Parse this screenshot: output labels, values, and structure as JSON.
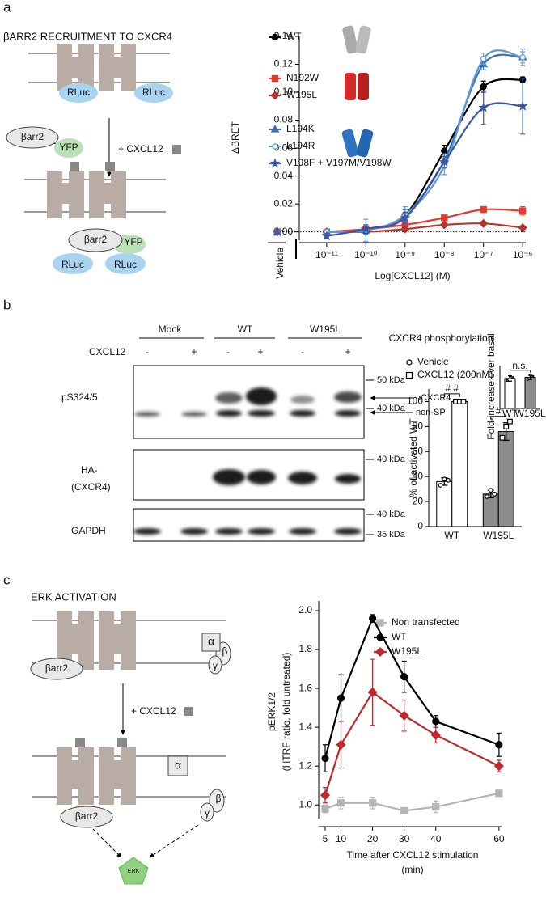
{
  "panels": [
    "a",
    "b",
    "c"
  ],
  "diagram_a": {
    "title": "βARR2 RECRUITMENT TO CXCR4",
    "labels": [
      "RLuc",
      "RLuc",
      "βarr2",
      "YFP",
      "+ CXCL12",
      "βarr2",
      "YFP",
      "RLuc",
      "RLuc"
    ]
  },
  "blot": {
    "groups": [
      "Mock",
      "WT",
      "W195L"
    ],
    "treatment": "CXCL12",
    "lane_signs": [
      "-",
      "+",
      "-",
      "+",
      "-",
      "+"
    ],
    "rows": [
      "pS324/5",
      "HA-",
      "(CXCR4)",
      "GAPDH"
    ],
    "markers": [
      "50 kDa",
      "40 kDa",
      "40 kDa",
      "40 kDa",
      "35 kDa"
    ],
    "bands": [
      "pCXCR4",
      "non-SP"
    ]
  },
  "diagram_c": {
    "title": "ERK ACTIVATION",
    "labels": [
      "α",
      "β",
      "γ",
      "βarr2",
      "+ CXCL12",
      "α",
      "β",
      "γ",
      "βarr2",
      "ERK"
    ]
  },
  "chart_data": [
    {
      "type": "line",
      "xscale": "log",
      "smooth": true,
      "zero_line": true,
      "ylabel": "ΔBRET",
      "xlabel": "Log[CXCL12] (M)",
      "vehicle_label": "Vehicle",
      "x": [
        1e-11,
        1e-10,
        1e-09,
        1e-08,
        1e-07,
        1e-06
      ],
      "xlim": [
        2e-12,
        1.2e-06
      ],
      "xticks": [
        {
          "value": 1e-11,
          "label": "10⁻¹¹"
        },
        {
          "value": 1e-10,
          "label": "10⁻¹⁰"
        },
        {
          "value": 1e-09,
          "label": "10⁻⁹"
        },
        {
          "value": 1e-08,
          "label": "10⁻⁸"
        },
        {
          "value": 1e-07,
          "label": "10⁻⁷"
        },
        {
          "value": 1e-06,
          "label": "10⁻⁶"
        }
      ],
      "ylim": [
        -0.006,
        0.14
      ],
      "yticks": [
        {
          "value": 0,
          "label": "0.00"
        },
        {
          "value": 0.02,
          "label": "0.02"
        },
        {
          "value": 0.04,
          "label": "0.04"
        },
        {
          "value": 0.06,
          "label": "0.06"
        },
        {
          "value": 0.08,
          "label": "0.08"
        },
        {
          "value": 0.1,
          "label": "0.10"
        },
        {
          "value": 0.12,
          "label": "0.12"
        },
        {
          "value": 0.14,
          "label": "0.14"
        }
      ],
      "series": [
        {
          "name": "WT",
          "color": "#000000",
          "marker": "circle",
          "vehicle": 0,
          "values": [
            0.0,
            0.002,
            0.012,
            0.058,
            0.104,
            0.109
          ],
          "errors": [
            0.002,
            0.003,
            0.004,
            0.004,
            0.004,
            0.002
          ]
        },
        {
          "name": "N192W",
          "color": "#e53a2f",
          "marker": "square",
          "vehicle": 0,
          "values": [
            0.0,
            0.002,
            0.005,
            0.01,
            0.016,
            0.015
          ],
          "errors": [
            0.001,
            0.002,
            0.002,
            0.002,
            0.002,
            0.003
          ]
        },
        {
          "name": "W195L",
          "color": "#b5352f",
          "marker": "diamond",
          "vehicle": 0,
          "values": [
            0.0,
            0.0,
            0.002,
            0.005,
            0.006,
            0.003
          ],
          "errors": [
            0.001,
            0.001,
            0.001,
            0.001,
            0.001,
            0.001
          ]
        },
        {
          "name": "L194K",
          "color": "#3c6fb6",
          "marker": "triangle",
          "vehicle": 0,
          "values": [
            0.0,
            0.001,
            0.012,
            0.051,
            0.12,
            0.125
          ],
          "errors": [
            0.002,
            0.003,
            0.004,
            0.005,
            0.004,
            0.006
          ]
        },
        {
          "name": "L194R",
          "color": "#5b9bd5",
          "marker": "circle-open",
          "vehicle": 0,
          "values": [
            0.0,
            0.001,
            0.012,
            0.047,
            0.124,
            0.125
          ],
          "errors": [
            0.002,
            0.008,
            0.006,
            0.006,
            0.004,
            0.004
          ]
        },
        {
          "name": "V198F + V197M/V198W",
          "color": "#3a57a7",
          "marker": "star",
          "vehicle": 0,
          "values": [
            -0.003,
            0.002,
            0.01,
            0.05,
            0.089,
            0.09
          ],
          "errors": [
            0.002,
            0.003,
            0.004,
            0.004,
            0.012,
            0.02
          ]
        }
      ]
    },
    {
      "type": "bar",
      "title": "CXCR4 phosphorylation",
      "ylabel": "% of activated WT",
      "categories": [
        "WT",
        "W195L"
      ],
      "bar_colors": [
        "#ffffff",
        "#8c8c8c"
      ],
      "ylim": [
        0,
        110
      ],
      "yticks": [
        0,
        20,
        40,
        60,
        80,
        100
      ],
      "annotations": [
        "# #",
        "#"
      ],
      "series": [
        {
          "name": "Vehicle",
          "marker": "circle-open",
          "values": [
            36,
            26
          ],
          "errors": [
            3,
            3
          ],
          "points": [
            [
              33,
              38,
              37
            ],
            [
              24,
              29,
              26
            ]
          ]
        },
        {
          "name": "CXCL12 (200nM)",
          "marker": "square-open",
          "values": [
            100,
            76
          ],
          "errors": [
            1,
            7
          ],
          "points": [
            [
              100,
              100,
              100
            ],
            [
              71,
              80,
              84
            ]
          ]
        }
      ]
    },
    {
      "type": "bar",
      "ylabel": "Fold-increase over basal",
      "categories": [
        "WT",
        "W195L"
      ],
      "bar_colors": [
        "#ffffff",
        "#8c8c8c"
      ],
      "ylim": [
        0,
        4
      ],
      "annotation": "n.s.",
      "marker": "circle-open",
      "values": [
        2.8,
        2.9
      ],
      "errors": [
        0.25,
        0.2
      ],
      "points": [
        [
          2.6,
          3.0,
          2.9
        ],
        [
          2.7,
          3.1,
          3.0
        ]
      ]
    },
    {
      "type": "line",
      "smooth": false,
      "ylabel": [
        "pERK1/2",
        "(HTRF ratio, fold untreated)"
      ],
      "xlabel": [
        "Time after CXCL12 stimulation",
        "(min)"
      ],
      "x": [
        5,
        10,
        20,
        30,
        40,
        60
      ],
      "xlim": [
        2.95,
        60.8
      ],
      "xticks": [
        5,
        10,
        20,
        30,
        40,
        60
      ],
      "ylim": [
        0.93,
        2.05
      ],
      "yticks": [
        {
          "value": 1,
          "label": "1.0"
        },
        {
          "value": 1.2,
          "label": "1.2"
        },
        {
          "value": 1.4,
          "label": "1.4"
        },
        {
          "value": 1.6,
          "label": "1.6"
        },
        {
          "value": 1.8,
          "label": "1.8"
        },
        {
          "value": 2,
          "label": "2.0"
        }
      ],
      "series": [
        {
          "name": "Non transfected",
          "color": "#b4b4b4",
          "marker": "square",
          "values": [
            0.98,
            1.01,
            1.01,
            0.97,
            0.99,
            1.06
          ],
          "errors": [
            0.02,
            0.03,
            0.03,
            0.01,
            0.03,
            0.01
          ]
        },
        {
          "name": "WT",
          "color": "#000000",
          "marker": "circle",
          "values": [
            1.24,
            1.55,
            1.96,
            1.66,
            1.43,
            1.31
          ],
          "errors": [
            0.07,
            0.12,
            0.02,
            0.08,
            0.03,
            0.06
          ]
        },
        {
          "name": "W195L",
          "color": "#c0282d",
          "marker": "diamond",
          "values": [
            1.05,
            1.31,
            1.58,
            1.46,
            1.36,
            1.2
          ],
          "errors": [
            0.04,
            0.12,
            0.17,
            0.08,
            0.04,
            0.03
          ]
        }
      ]
    }
  ]
}
